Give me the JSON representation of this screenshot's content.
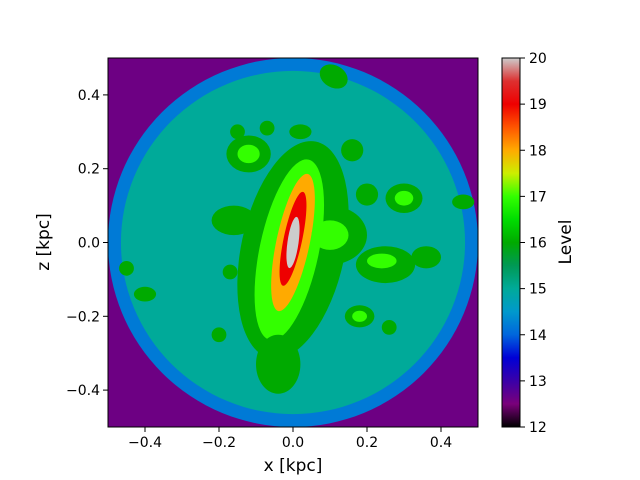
{
  "chart_data": {
    "type": "heatmap",
    "title": "",
    "xlabel": "x [kpc]",
    "ylabel": "z [kpc]",
    "xlim": [
      -0.5,
      0.5
    ],
    "ylim": [
      -0.5,
      0.5
    ],
    "xticks": [
      -0.4,
      -0.2,
      0.0,
      0.2,
      0.4
    ],
    "xtick_labels": [
      "−0.4",
      "−0.2",
      "0.0",
      "0.2",
      "0.4"
    ],
    "yticks": [
      -0.4,
      -0.2,
      0.0,
      0.2,
      0.4
    ],
    "ytick_labels": [
      "−0.4",
      "−0.2",
      "0.0",
      "0.2",
      "0.4"
    ],
    "grid": false,
    "colorbar": {
      "label": "Level",
      "range": [
        12,
        20
      ],
      "ticks": [
        12,
        13,
        14,
        15,
        16,
        17,
        18,
        19,
        20
      ],
      "tick_labels": [
        "12",
        "13",
        "14",
        "15",
        "16",
        "17",
        "18",
        "19",
        "20"
      ],
      "stops": [
        {
          "value": 12.0,
          "color": "#000000"
        },
        {
          "value": 12.5,
          "color": "#7a007a"
        },
        {
          "value": 13.0,
          "color": "#3a00a8"
        },
        {
          "value": 13.5,
          "color": "#0000d6"
        },
        {
          "value": 14.0,
          "color": "#0066dd"
        },
        {
          "value": 14.5,
          "color": "#0099cc"
        },
        {
          "value": 15.0,
          "color": "#00aa99"
        },
        {
          "value": 15.5,
          "color": "#009955"
        },
        {
          "value": 16.0,
          "color": "#00aa00"
        },
        {
          "value": 16.5,
          "color": "#00dd00"
        },
        {
          "value": 17.0,
          "color": "#33ff00"
        },
        {
          "value": 17.5,
          "color": "#ccee00"
        },
        {
          "value": 18.0,
          "color": "#ffaa00"
        },
        {
          "value": 18.5,
          "color": "#ff5500"
        },
        {
          "value": 19.0,
          "color": "#ee0000"
        },
        {
          "value": 19.5,
          "color": "#dd3030"
        },
        {
          "value": 20.0,
          "color": "#cccccc"
        }
      ]
    },
    "regions": [
      {
        "level": 12.6,
        "shape": "field",
        "note": "corners"
      },
      {
        "level": 14.2,
        "shape": "circle",
        "cx": 0.0,
        "cy": 0.0,
        "r": 0.5
      },
      {
        "level": 15.0,
        "shape": "circle",
        "cx": 0.0,
        "cy": 0.0,
        "r": 0.465
      },
      {
        "level": 16.0,
        "shape": "ellipse",
        "cx": 0.0,
        "cy": -0.02,
        "rx": 0.14,
        "ry": 0.3,
        "angle": 12
      },
      {
        "level": 16.0,
        "shape": "ellipse",
        "cx": 0.1,
        "cy": 0.02,
        "rx": 0.1,
        "ry": 0.08,
        "angle": 0
      },
      {
        "level": 17.0,
        "shape": "ellipse",
        "cx": -0.01,
        "cy": -0.02,
        "rx": 0.08,
        "ry": 0.25,
        "angle": 12
      },
      {
        "level": 18.0,
        "shape": "ellipse",
        "cx": 0.0,
        "cy": 0.0,
        "rx": 0.045,
        "ry": 0.19,
        "angle": 12
      },
      {
        "level": 19.0,
        "shape": "ellipse",
        "cx": 0.0,
        "cy": 0.01,
        "rx": 0.025,
        "ry": 0.13,
        "angle": 12
      },
      {
        "level": 20.0,
        "shape": "ellipse",
        "cx": 0.0,
        "cy": 0.0,
        "rx": 0.015,
        "ry": 0.07,
        "angle": 8
      },
      {
        "level": 16.0,
        "shape": "ellipse",
        "cx": 0.11,
        "cy": 0.45,
        "rx": 0.04,
        "ry": 0.03,
        "angle": 30
      },
      {
        "level": 16.0,
        "shape": "ellipse",
        "cx": -0.4,
        "cy": -0.14,
        "rx": 0.03,
        "ry": 0.02,
        "angle": 0
      },
      {
        "level": 16.0,
        "shape": "ellipse",
        "cx": 0.46,
        "cy": 0.11,
        "rx": 0.03,
        "ry": 0.02,
        "angle": 0
      },
      {
        "level": 16.0,
        "shape": "ellipse",
        "cx": 0.3,
        "cy": 0.12,
        "rx": 0.05,
        "ry": 0.04,
        "angle": 0
      },
      {
        "level": 16.0,
        "shape": "ellipse",
        "cx": 0.25,
        "cy": -0.06,
        "rx": 0.08,
        "ry": 0.05,
        "angle": 0
      },
      {
        "level": 16.0,
        "shape": "ellipse",
        "cx": 0.18,
        "cy": -0.2,
        "rx": 0.04,
        "ry": 0.03,
        "angle": 0
      },
      {
        "level": 16.0,
        "shape": "ellipse",
        "cx": -0.16,
        "cy": 0.06,
        "rx": 0.06,
        "ry": 0.04,
        "angle": 0
      },
      {
        "level": 16.0,
        "shape": "ellipse",
        "cx": -0.12,
        "cy": 0.24,
        "rx": 0.06,
        "ry": 0.05,
        "angle": 0
      },
      {
        "level": 16.0,
        "shape": "ellipse",
        "cx": 0.16,
        "cy": 0.25,
        "rx": 0.03,
        "ry": 0.03,
        "angle": 0
      },
      {
        "level": 16.0,
        "shape": "ellipse",
        "cx": -0.04,
        "cy": -0.33,
        "rx": 0.06,
        "ry": 0.08,
        "angle": 0
      },
      {
        "level": 16.0,
        "shape": "ellipse",
        "cx": -0.2,
        "cy": -0.25,
        "rx": 0.02,
        "ry": 0.02,
        "angle": 0
      },
      {
        "level": 16.0,
        "shape": "ellipse",
        "cx": 0.26,
        "cy": -0.23,
        "rx": 0.02,
        "ry": 0.02,
        "angle": 0
      },
      {
        "level": 16.0,
        "shape": "ellipse",
        "cx": -0.45,
        "cy": -0.07,
        "rx": 0.02,
        "ry": 0.02,
        "angle": 0
      },
      {
        "level": 16.0,
        "shape": "ellipse",
        "cx": -0.17,
        "cy": -0.08,
        "rx": 0.02,
        "ry": 0.02,
        "angle": 0
      },
      {
        "level": 16.0,
        "shape": "ellipse",
        "cx": 0.02,
        "cy": 0.3,
        "rx": 0.03,
        "ry": 0.02,
        "angle": 0
      },
      {
        "level": 16.0,
        "shape": "ellipse",
        "cx": -0.07,
        "cy": 0.31,
        "rx": 0.02,
        "ry": 0.02,
        "angle": 0
      },
      {
        "level": 16.0,
        "shape": "ellipse",
        "cx": -0.15,
        "cy": 0.3,
        "rx": 0.02,
        "ry": 0.02,
        "angle": 0
      },
      {
        "level": 16.0,
        "shape": "ellipse",
        "cx": 0.2,
        "cy": 0.13,
        "rx": 0.03,
        "ry": 0.03,
        "angle": 0
      },
      {
        "level": 16.0,
        "shape": "ellipse",
        "cx": 0.36,
        "cy": -0.04,
        "rx": 0.04,
        "ry": 0.03,
        "angle": 0
      },
      {
        "level": 17.0,
        "shape": "ellipse",
        "cx": 0.3,
        "cy": 0.12,
        "rx": 0.025,
        "ry": 0.02,
        "angle": 0
      },
      {
        "level": 17.0,
        "shape": "ellipse",
        "cx": 0.24,
        "cy": -0.05,
        "rx": 0.04,
        "ry": 0.02,
        "angle": 0
      },
      {
        "level": 17.0,
        "shape": "ellipse",
        "cx": -0.12,
        "cy": 0.24,
        "rx": 0.03,
        "ry": 0.025,
        "angle": 0
      },
      {
        "level": 17.0,
        "shape": "ellipse",
        "cx": 0.18,
        "cy": -0.2,
        "rx": 0.02,
        "ry": 0.015,
        "angle": 0
      },
      {
        "level": 17.0,
        "shape": "ellipse",
        "cx": 0.1,
        "cy": 0.02,
        "rx": 0.05,
        "ry": 0.04,
        "angle": 0
      }
    ]
  }
}
